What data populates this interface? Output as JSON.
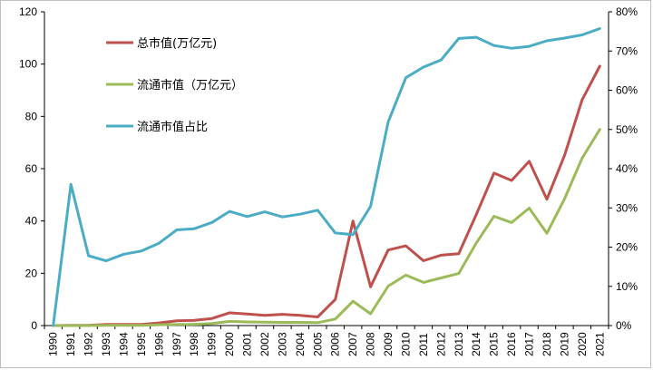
{
  "chart_data": {
    "type": "line",
    "x": [
      "1990",
      "1991",
      "1992",
      "1993",
      "1994",
      "1995",
      "1996",
      "1997",
      "1998",
      "1999",
      "2000",
      "2001",
      "2002",
      "2003",
      "2004",
      "2005",
      "2006",
      "2007",
      "2008",
      "2009",
      "2010",
      "2011",
      "2012",
      "2013",
      "2014",
      "2015",
      "2016",
      "2017",
      "2018",
      "2019",
      "2020",
      "2021"
    ],
    "y_left_lim": [
      0,
      120
    ],
    "y_left_ticks": [
      0,
      20,
      40,
      60,
      80,
      100,
      120
    ],
    "y_right_lim": [
      0,
      0.8
    ],
    "y_right_ticks": [
      "0%",
      "10%",
      "20%",
      "30%",
      "40%",
      "50%",
      "60%",
      "70%",
      "80%"
    ],
    "grid": false,
    "legend_position": "top-left",
    "series": [
      {
        "name": "总市值(万亿元)",
        "axis": "left",
        "color": "#c0504d",
        "values": [
          0.0,
          0.1,
          0.1,
          0.4,
          0.4,
          0.4,
          1.0,
          1.8,
          2.0,
          2.7,
          4.9,
          4.4,
          3.9,
          4.3,
          3.9,
          3.3,
          10.0,
          40.0,
          14.8,
          28.9,
          30.5,
          24.8,
          26.9,
          27.5,
          42.5,
          58.3,
          55.5,
          62.8,
          48.3,
          65.0,
          86.3,
          99.2
        ]
      },
      {
        "name": "流通市值（万亿元）",
        "axis": "left",
        "color": "#9bbb59",
        "values": [
          0.0,
          0.0,
          0.0,
          0.1,
          0.1,
          0.1,
          0.3,
          0.4,
          0.5,
          0.8,
          1.6,
          1.4,
          1.3,
          1.2,
          1.2,
          1.1,
          2.5,
          9.3,
          4.5,
          15.1,
          19.3,
          16.5,
          18.2,
          19.9,
          31.6,
          41.8,
          39.4,
          44.9,
          35.3,
          48.4,
          64.0,
          75.0
        ]
      },
      {
        "name": "流通市值占比",
        "axis": "right",
        "color": "#4bacc6",
        "values": [
          0.0,
          0.36,
          0.178,
          0.165,
          0.182,
          0.19,
          0.21,
          0.244,
          0.247,
          0.263,
          0.291,
          0.278,
          0.29,
          0.277,
          0.284,
          0.294,
          0.236,
          0.232,
          0.304,
          0.519,
          0.632,
          0.659,
          0.677,
          0.732,
          0.735,
          0.714,
          0.707,
          0.712,
          0.726,
          0.733,
          0.741,
          0.757
        ]
      }
    ]
  }
}
